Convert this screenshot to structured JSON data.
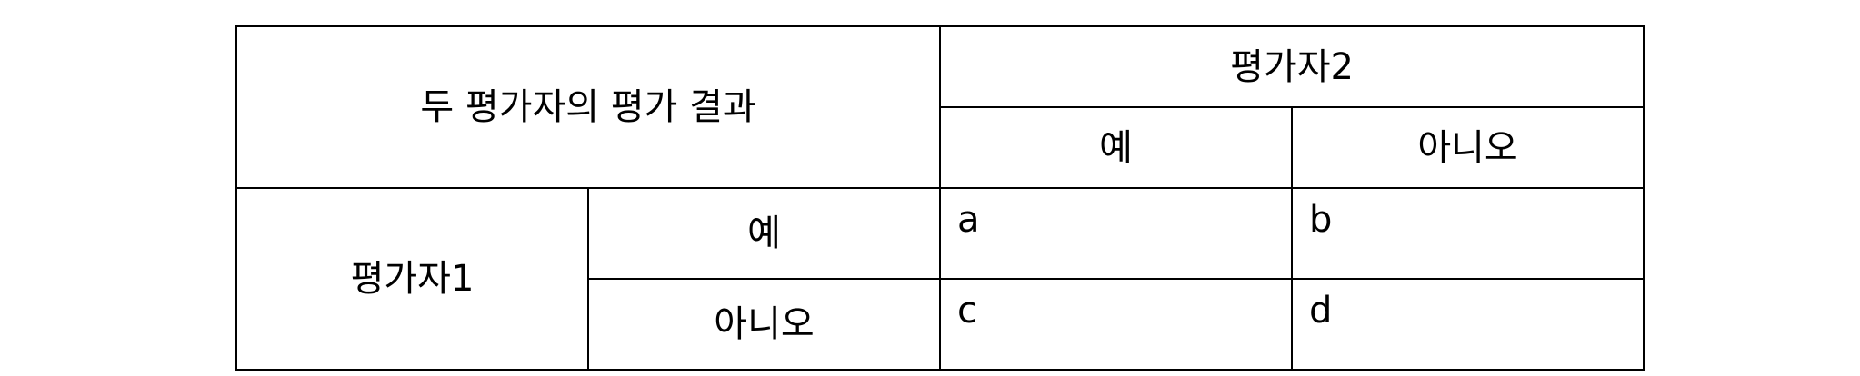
{
  "table": {
    "corner_label": "두 평가자의 평가 결과",
    "rater2": {
      "label": "평가자2",
      "yes": "예",
      "no": "아니오"
    },
    "rater1": {
      "label": "평가자1",
      "yes": "예",
      "no": "아니오"
    },
    "cells": {
      "yes_yes": "a",
      "yes_no": "b",
      "no_yes": "c",
      "no_no": "d"
    }
  }
}
